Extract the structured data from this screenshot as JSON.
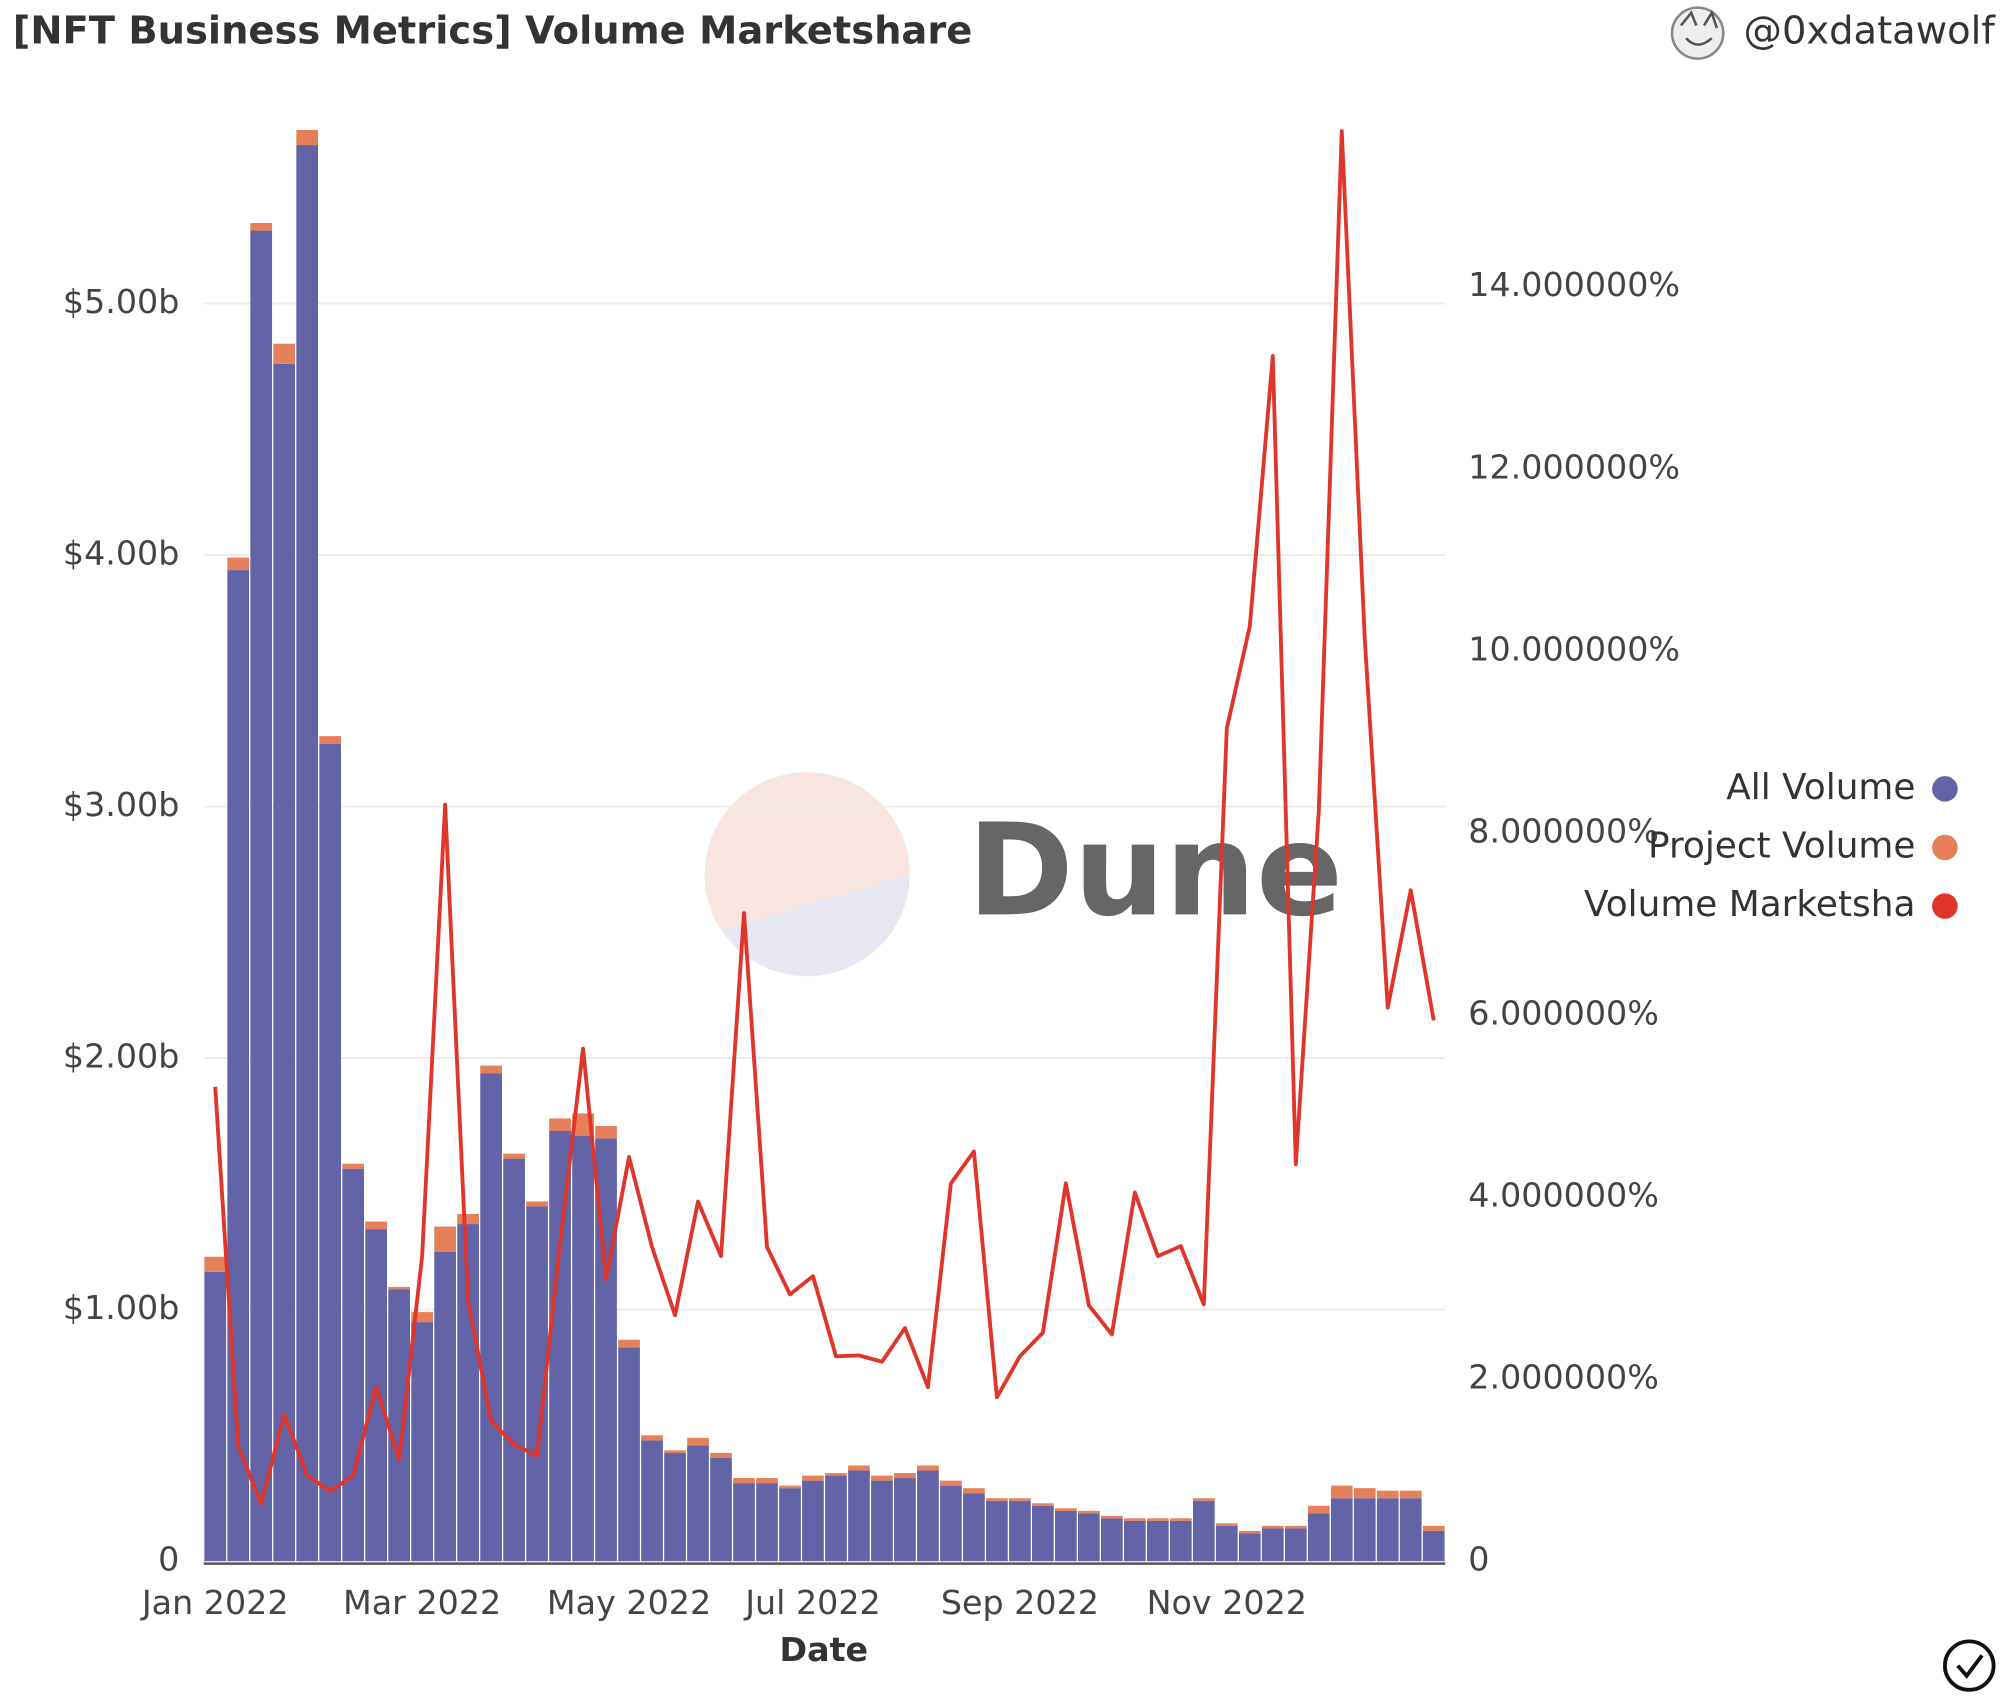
{
  "header": {
    "title": "[NFT Business Metrics] Volume Marketshare",
    "author": "@0xdatawolf"
  },
  "watermark": "Dune",
  "chart_data": {
    "type": "bar",
    "stacked": true,
    "x_label": "Date",
    "categories": [
      "Jan 2022",
      null,
      null,
      null,
      null,
      null,
      null,
      null,
      null,
      "Mar 2022",
      null,
      null,
      null,
      null,
      null,
      null,
      null,
      null,
      "May 2022",
      null,
      null,
      null,
      null,
      null,
      null,
      null,
      "Jul 2022",
      null,
      null,
      null,
      null,
      null,
      null,
      null,
      null,
      "Sep 2022",
      null,
      null,
      null,
      null,
      null,
      null,
      null,
      null,
      "Nov 2022",
      null,
      null,
      null,
      null,
      null,
      null,
      null,
      null,
      null
    ],
    "series": [
      {
        "name": "All Volume",
        "color": "#6264a7",
        "type": "bar",
        "values": [
          1150000000,
          3940000000,
          5290000000,
          4760000000,
          5630000000,
          3250000000,
          1560000000,
          1320000000,
          1080000000,
          950000000,
          1230000000,
          1340000000,
          1940000000,
          1600000000,
          1410000000,
          1710000000,
          1690000000,
          1680000000,
          850000000,
          480000000,
          430000000,
          460000000,
          410000000,
          310000000,
          310000000,
          290000000,
          320000000,
          340000000,
          360000000,
          320000000,
          330000000,
          360000000,
          300000000,
          270000000,
          240000000,
          240000000,
          220000000,
          200000000,
          190000000,
          170000000,
          160000000,
          160000000,
          160000000,
          240000000,
          140000000,
          110000000,
          130000000,
          130000000,
          190000000,
          250000000,
          250000000,
          250000000,
          250000000,
          120000000
        ]
      },
      {
        "name": "Project Volume",
        "color": "#e5805a",
        "type": "bar",
        "values": [
          60000000,
          50000000,
          30000000,
          80000000,
          60000000,
          30000000,
          20000000,
          30000000,
          10000000,
          40000000,
          100000000,
          40000000,
          30000000,
          20000000,
          20000000,
          50000000,
          90000000,
          50000000,
          30000000,
          20000000,
          10000000,
          30000000,
          20000000,
          20000000,
          20000000,
          10000000,
          20000000,
          10000000,
          20000000,
          20000000,
          20000000,
          20000000,
          20000000,
          20000000,
          10000000,
          10000000,
          10000000,
          10000000,
          10000000,
          10000000,
          10000000,
          10000000,
          10000000,
          10000000,
          10000000,
          10000000,
          10000000,
          10000000,
          30000000,
          50000000,
          40000000,
          30000000,
          30000000,
          20000000
        ]
      },
      {
        "name": "Volume Marketsha",
        "color": "#e0352b",
        "type": "line",
        "axis": "y2",
        "values": [
          5.21,
          1.26,
          0.63,
          1.61,
          0.94,
          0.77,
          0.94,
          1.91,
          1.12,
          3.35,
          8.31,
          2.86,
          1.54,
          1.28,
          1.16,
          3.49,
          5.63,
          3.1,
          4.44,
          3.45,
          2.7,
          3.95,
          3.35,
          7.12,
          3.45,
          2.93,
          3.13,
          2.25,
          2.26,
          2.19,
          2.56,
          1.91,
          4.15,
          4.5,
          1.8,
          2.25,
          2.51,
          4.15,
          2.81,
          2.49,
          4.05,
          3.35,
          3.46,
          2.82,
          9.15,
          10.27,
          13.24,
          4.36,
          8.24,
          15.71,
          10.13,
          6.08,
          7.37,
          5.94
        ]
      }
    ],
    "ylim": [
      0,
      5700000000
    ],
    "yticks": [
      0,
      {
        "value": 1000000000,
        "label": "$1.00b"
      },
      {
        "value": 2000000000,
        "label": "$2.00b"
      },
      {
        "value": 3000000000,
        "label": "$3.00b"
      },
      {
        "value": 4000000000,
        "label": "$4.00b"
      },
      {
        "value": 5000000000,
        "label": "$5.00b"
      }
    ],
    "y2lim": [
      0,
      15.75
    ],
    "y2ticks": [
      0,
      {
        "value": 2,
        "label": "2.000000%"
      },
      {
        "value": 4,
        "label": "4.000000%"
      },
      {
        "value": 6,
        "label": "6.000000%"
      },
      {
        "value": 8,
        "label": "8.000000%"
      },
      {
        "value": 10,
        "label": "10.000000%"
      },
      {
        "value": 12,
        "label": "12.000000%"
      },
      {
        "value": 14,
        "label": "14.000000%"
      }
    ],
    "grid": true,
    "legend": "right"
  }
}
